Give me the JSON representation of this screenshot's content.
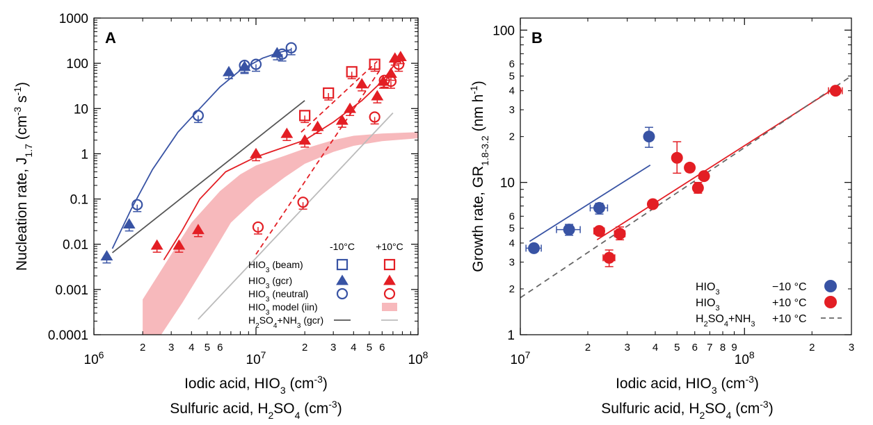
{
  "chart_data": [
    {
      "type": "scatter",
      "panel_label": "A",
      "xlabel": "Iodic acid, HIO",
      "xlabel_sub": "3",
      "xlabel_unit": " (cm",
      "xlabel_unit_sup": "-3",
      "xlabel_end": ")",
      "xlabel2": "Sulfuric acid, H",
      "xlabel2_sub1": "2",
      "xlabel2_mid": "SO",
      "xlabel2_sub2": "4",
      "xlabel2_unit": " (cm",
      "xlabel2_unit_sup": "-3",
      "xlabel2_end": ")",
      "ylabel": "Nucleation rate, J",
      "ylabel_sub": "1.7",
      "ylabel_unit": " (cm",
      "ylabel_sup1": "-3",
      "ylabel_mid": " s",
      "ylabel_sup2": "-1",
      "ylabel_end": ")",
      "x_scale": "log",
      "y_scale": "log",
      "xlim": [
        1000000,
        100000000
      ],
      "ylim": [
        0.0001,
        1000
      ],
      "x_major_ticks": [
        {
          "value": 1000000,
          "base": "10",
          "exp": "6"
        },
        {
          "value": 10000000,
          "base": "10",
          "exp": "7"
        },
        {
          "value": 100000000,
          "base": "10",
          "exp": "8"
        }
      ],
      "x_minor_labels": [
        {
          "value": 2000000,
          "label": "2"
        },
        {
          "value": 3000000,
          "label": "3"
        },
        {
          "value": 4000000,
          "label": "4"
        },
        {
          "value": 5000000,
          "label": "5"
        },
        {
          "value": 6000000,
          "label": "6"
        },
        {
          "value": 20000000,
          "label": "2"
        },
        {
          "value": 30000000,
          "label": "3"
        },
        {
          "value": 40000000,
          "label": "4"
        },
        {
          "value": 50000000,
          "label": "5"
        },
        {
          "value": 60000000,
          "label": "6"
        }
      ],
      "y_ticks": [
        {
          "value": 0.0001,
          "label": "0.0001"
        },
        {
          "value": 0.001,
          "label": "0.001"
        },
        {
          "value": 0.01,
          "label": "0.01"
        },
        {
          "value": 0.1,
          "label": "0.1"
        },
        {
          "value": 1,
          "label": "1"
        },
        {
          "value": 10,
          "label": "10"
        },
        {
          "value": 100,
          "label": "100"
        },
        {
          "value": 1000,
          "label": "1000"
        }
      ],
      "grid": false,
      "legend_position": "bottom-right",
      "legend_headers": [
        "-10°C",
        "+10°C"
      ],
      "colors": {
        "cold": "#3853a4",
        "warm": "#e31e24",
        "band": "#f7b9bc",
        "gray_dark": "#555555",
        "gray_light": "#bbbbbb"
      },
      "legend": [
        {
          "label": "HIO",
          "sub": "3",
          "rest": " (beam)",
          "marker": "square"
        },
        {
          "label": "HIO",
          "sub": "3",
          "rest": " (gcr)",
          "marker": "triangle"
        },
        {
          "label": "HIO",
          "sub": "3",
          "rest": " (neutral)",
          "marker": "circle"
        },
        {
          "label": "HIO",
          "sub": "3",
          "rest": " model (iin)",
          "marker": "band"
        },
        {
          "label": "H",
          "sub": "2",
          "mid": "SO",
          "sub2": "4",
          "rest": "+NH",
          "sub3": "3",
          "rest2": " (gcr)",
          "marker": "line"
        }
      ],
      "series": [
        {
          "id": "cold_gcr",
          "color": "cold",
          "marker": "triangle",
          "points": [
            [
              1200000,
              0.0055
            ],
            [
              1650000,
              0.028
            ],
            [
              6800000,
              65
            ],
            [
              8500000,
              85
            ],
            [
              13500000,
              170
            ]
          ]
        },
        {
          "id": "cold_neutral",
          "color": "cold",
          "marker": "circle",
          "points": [
            [
              1850000,
              0.075
            ],
            [
              4400000,
              7
            ],
            [
              8500000,
              90
            ],
            [
              10000000,
              95
            ],
            [
              14500000,
              160
            ],
            [
              16500000,
              220
            ]
          ]
        },
        {
          "id": "warm_beam",
          "color": "warm",
          "marker": "square",
          "points": [
            [
              20000000,
              7
            ],
            [
              28000000,
              22
            ],
            [
              39000000,
              65
            ],
            [
              54000000,
              95
            ]
          ]
        },
        {
          "id": "warm_gcr",
          "color": "warm",
          "marker": "triangle",
          "points": [
            [
              2450000,
              0.0095
            ],
            [
              3350000,
              0.0095
            ],
            [
              4400000,
              0.021
            ],
            [
              10000000,
              1.0
            ],
            [
              15500000,
              2.8
            ],
            [
              20000000,
              2.0
            ],
            [
              24000000,
              4.0
            ],
            [
              34000000,
              5.5
            ],
            [
              38000000,
              10
            ],
            [
              45000000,
              35
            ],
            [
              56000000,
              19
            ],
            [
              61000000,
              40
            ],
            [
              68000000,
              60
            ],
            [
              72000000,
              130
            ],
            [
              78000000,
              140
            ]
          ]
        },
        {
          "id": "warm_neutral",
          "color": "warm",
          "marker": "circle",
          "points": [
            [
              10300000,
              0.024
            ],
            [
              19500000,
              0.085
            ],
            [
              54000000,
              6.5
            ],
            [
              62000000,
              42
            ],
            [
              68000000,
              40
            ],
            [
              76000000,
              95
            ]
          ]
        }
      ],
      "fit_lines": [
        {
          "id": "cold_fit",
          "color": "cold",
          "style": "solid",
          "points": [
            [
              1300000,
              0.008
            ],
            [
              1700000,
              0.06
            ],
            [
              2300000,
              0.45
            ],
            [
              3300000,
              3
            ],
            [
              4500000,
              10
            ],
            [
              6000000,
              30
            ],
            [
              8000000,
              70
            ],
            [
              11000000,
              130
            ],
            [
              14000000,
              175
            ],
            [
              16500000,
              200
            ]
          ]
        },
        {
          "id": "warm_gcr_fit",
          "color": "warm",
          "style": "solid",
          "points": [
            [
              2700000,
              0.0045
            ],
            [
              3500000,
              0.02
            ],
            [
              4500000,
              0.1
            ],
            [
              6500000,
              0.4
            ],
            [
              10000000,
              0.85
            ],
            [
              20000000,
              2.0
            ],
            [
              30000000,
              5
            ],
            [
              45000000,
              15
            ],
            [
              60000000,
              40
            ],
            [
              80000000,
              160
            ]
          ]
        },
        {
          "id": "warm_beam_fit",
          "color": "warm",
          "style": "dashed",
          "points": [
            [
              19000000,
              3
            ],
            [
              56000000,
              110
            ]
          ]
        },
        {
          "id": "warm_neutral_fit",
          "color": "warm",
          "style": "dashed",
          "points": [
            [
              10000000,
              0.006
            ],
            [
              58000000,
              70
            ]
          ]
        },
        {
          "id": "h2so4_minus10",
          "color": "gray_dark",
          "style": "solid",
          "points": [
            [
              1300000,
              0.0065
            ],
            [
              20000000,
              15
            ]
          ]
        },
        {
          "id": "h2so4_plus10",
          "color": "gray_light",
          "style": "solid",
          "points": [
            [
              4400000,
              0.00022
            ],
            [
              70000000,
              8
            ]
          ]
        }
      ],
      "model_band": {
        "id": "iin_model",
        "color": "band",
        "upper": [
          [
            2000000,
            0.0006
          ],
          [
            3000000,
            0.006
          ],
          [
            4000000,
            0.03
          ],
          [
            6000000,
            0.15
          ],
          [
            8000000,
            0.35
          ],
          [
            10000000,
            0.55
          ],
          [
            15000000,
            0.9
          ],
          [
            20000000,
            1.3
          ],
          [
            30000000,
            2.0
          ],
          [
            40000000,
            2.5
          ],
          [
            60000000,
            2.8
          ],
          [
            100000000,
            3.0
          ]
        ],
        "lower": [
          [
            2000000,
            0.0001
          ],
          [
            2600000,
            0.0001
          ],
          [
            3500000,
            0.0005
          ],
          [
            5000000,
            0.004
          ],
          [
            7000000,
            0.03
          ],
          [
            10000000,
            0.1
          ],
          [
            15000000,
            0.3
          ],
          [
            20000000,
            0.6
          ],
          [
            30000000,
            1.1
          ],
          [
            40000000,
            1.5
          ],
          [
            60000000,
            1.9
          ],
          [
            100000000,
            2.2
          ]
        ]
      }
    },
    {
      "type": "scatter",
      "panel_label": "B",
      "xlabel": "Iodic acid, HIO",
      "xlabel_sub": "3",
      "xlabel_unit": " (cm",
      "xlabel_unit_sup": "-3",
      "xlabel_end": ")",
      "xlabel2": "Sulfuric acid, H",
      "xlabel2_sub1": "2",
      "xlabel2_mid": "SO",
      "xlabel2_sub2": "4",
      "xlabel2_unit": " (cm",
      "xlabel2_unit_sup": "-3",
      "xlabel2_end": ")",
      "ylabel": "Growth rate, GR",
      "ylabel_sub": "1.8-3.2",
      "ylabel_unit": " (nm h",
      "ylabel_sup1": "-1",
      "ylabel_end": ")",
      "x_scale": "log",
      "y_scale": "log",
      "xlim": [
        10000000,
        300000000
      ],
      "ylim": [
        1,
        120
      ],
      "x_major_ticks": [
        {
          "value": 10000000,
          "base": "10",
          "exp": "7"
        },
        {
          "value": 100000000,
          "base": "10",
          "exp": "8"
        }
      ],
      "x_minor_labels": [
        {
          "value": 20000000,
          "label": "2"
        },
        {
          "value": 30000000,
          "label": "3"
        },
        {
          "value": 40000000,
          "label": "4"
        },
        {
          "value": 50000000,
          "label": "5"
        },
        {
          "value": 60000000,
          "label": "6"
        },
        {
          "value": 70000000,
          "label": "7"
        },
        {
          "value": 80000000,
          "label": "8"
        },
        {
          "value": 90000000,
          "label": "9"
        },
        {
          "value": 200000000,
          "label": "2"
        },
        {
          "value": 300000000,
          "label": "3"
        }
      ],
      "y_major_ticks": [
        {
          "value": 1,
          "label": "1"
        },
        {
          "value": 10,
          "label": "10"
        },
        {
          "value": 100,
          "label": "100"
        }
      ],
      "y_minor_labels": [
        {
          "value": 2,
          "label": "2"
        },
        {
          "value": 3,
          "label": "3"
        },
        {
          "value": 4,
          "label": "4"
        },
        {
          "value": 5,
          "label": "5"
        },
        {
          "value": 6,
          "label": "6"
        },
        {
          "value": 20,
          "label": "2"
        },
        {
          "value": 30,
          "label": "3"
        },
        {
          "value": 40,
          "label": "4"
        },
        {
          "value": 50,
          "label": "5"
        },
        {
          "value": 60,
          "label": "6"
        }
      ],
      "grid": false,
      "legend_position": "bottom-right",
      "colors": {
        "cold": "#3853a4",
        "warm": "#e31e24",
        "gray": "#666666"
      },
      "legend": [
        {
          "label": "HIO",
          "sub": "3",
          "temp": "−10 °C",
          "marker": "circle",
          "color": "cold"
        },
        {
          "label": "HIO",
          "sub": "3",
          "temp": "+10 °C",
          "marker": "circle",
          "color": "warm"
        },
        {
          "label": "H",
          "sub": "2",
          "mid": "SO",
          "sub2": "4",
          "rest": "+NH",
          "sub3": "3",
          "temp": "+10 °C",
          "marker": "dashed",
          "color": "gray"
        }
      ],
      "series": [
        {
          "id": "cold",
          "color": "cold",
          "points": [
            {
              "x": 11500000,
              "y": 3.7,
              "xerr": 900000
            },
            {
              "x": 16500000,
              "y": 4.9,
              "xerr": 2000000,
              "ylo": 4.5,
              "yhi": 5.3
            },
            {
              "x": 22500000,
              "y": 6.8,
              "xerr": 2000000,
              "ylo": 6.2,
              "yhi": 7.3
            },
            {
              "x": 37500000,
              "y": 20,
              "ylo": 17,
              "yhi": 23
            }
          ]
        },
        {
          "id": "warm",
          "color": "warm",
          "points": [
            {
              "x": 22500000,
              "y": 4.8,
              "xerr": 1200000
            },
            {
              "x": 24900000,
              "y": 3.2,
              "xerr": 1500000,
              "ylo": 2.8,
              "yhi": 3.6
            },
            {
              "x": 27800000,
              "y": 4.6,
              "xerr": 1500000,
              "ylo": 4.2,
              "yhi": 5.1
            },
            {
              "x": 39000000,
              "y": 7.2
            },
            {
              "x": 50000000,
              "y": 14.5,
              "ylo": 11.5,
              "yhi": 18.5
            },
            {
              "x": 57000000,
              "y": 12.5
            },
            {
              "x": 62000000,
              "y": 9.2,
              "ylo": 8.5,
              "yhi": 10
            },
            {
              "x": 66000000,
              "y": 11
            },
            {
              "x": 255000000,
              "y": 40,
              "xerr": 18000000
            }
          ]
        }
      ],
      "fit_lines": [
        {
          "id": "cold_fit",
          "color": "cold",
          "style": "solid",
          "points": [
            [
              11000000,
              4.1
            ],
            [
              38000000,
              13
            ]
          ]
        },
        {
          "id": "warm_fit",
          "color": "warm",
          "style": "solid",
          "points": [
            [
              22000000,
              4.2
            ],
            [
              255000000,
              42
            ]
          ]
        },
        {
          "id": "h2so4_fit",
          "color": "gray",
          "style": "dashed",
          "points": [
            [
              10000000,
              1.75
            ],
            [
              300000000,
              50
            ]
          ]
        }
      ]
    }
  ]
}
